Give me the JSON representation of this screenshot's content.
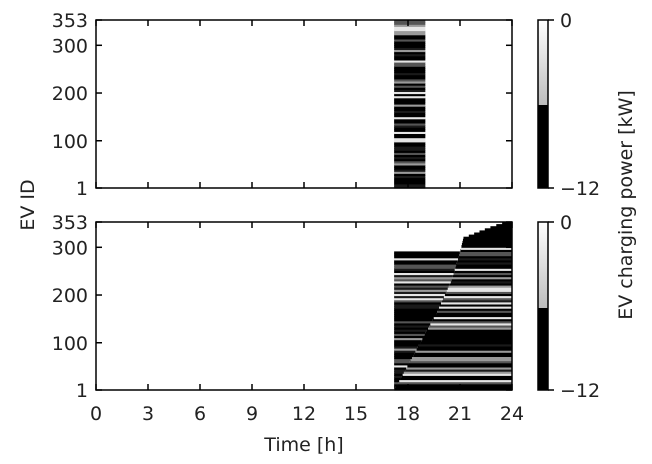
{
  "chart_data": [
    {
      "type": "heatmap",
      "panel": "top",
      "title": "",
      "x": {
        "ticks": [
          0,
          3,
          6,
          9,
          12,
          15,
          18,
          21,
          24
        ],
        "lim": [
          0,
          24
        ],
        "labels_shown": false
      },
      "y": {
        "ticks": [
          1,
          100,
          200,
          300,
          353
        ],
        "lim": [
          1,
          353
        ]
      },
      "value_range_kw": [
        -12,
        0
      ],
      "charging_band_h": [
        17.2,
        19.0
      ],
      "description": "All EVs charge within roughly 17.2–19.0 h; mix of full-power (black) and partial rows."
    },
    {
      "type": "heatmap",
      "panel": "bottom",
      "title": "",
      "x": {
        "ticks": [
          0,
          3,
          6,
          9,
          12,
          15,
          18,
          21,
          24
        ],
        "lim": [
          0,
          24
        ],
        "labels_shown": true
      },
      "y": {
        "ticks": [
          1,
          100,
          200,
          300,
          353
        ],
        "lim": [
          1,
          353
        ]
      },
      "value_range_kw": [
        -12,
        0
      ],
      "charging_region": {
        "start_h": 17.2,
        "end_h": 24,
        "upper_ids_boundary": [
          {
            "ev_id": 1,
            "start_h": 17.2
          },
          {
            "ev_id": 160,
            "start_h": 19.6
          },
          {
            "ev_id": 230,
            "start_h": 20.5
          },
          {
            "ev_id": 290,
            "start_h": 21.0
          },
          {
            "ev_id": 320,
            "start_h": 21.2
          },
          {
            "ev_id": 340,
            "start_h": 22.6
          },
          {
            "ev_id": 353,
            "start_h": 23.6
          }
        ]
      }
    }
  ],
  "axes": {
    "xlabel": "Time [h]",
    "ylabel": "EV ID",
    "x_tick_labels": [
      "0",
      "3",
      "6",
      "9",
      "12",
      "15",
      "18",
      "21",
      "24"
    ],
    "y_tick_labels": [
      "1",
      "100",
      "200",
      "300",
      "353"
    ]
  },
  "colorbar": {
    "label": "EV charging power [kW]",
    "max_label": "0",
    "min_label": "−12",
    "colors": {
      "low": "#000000",
      "mid": "#bdbdbd",
      "high": "#ffffff"
    }
  }
}
